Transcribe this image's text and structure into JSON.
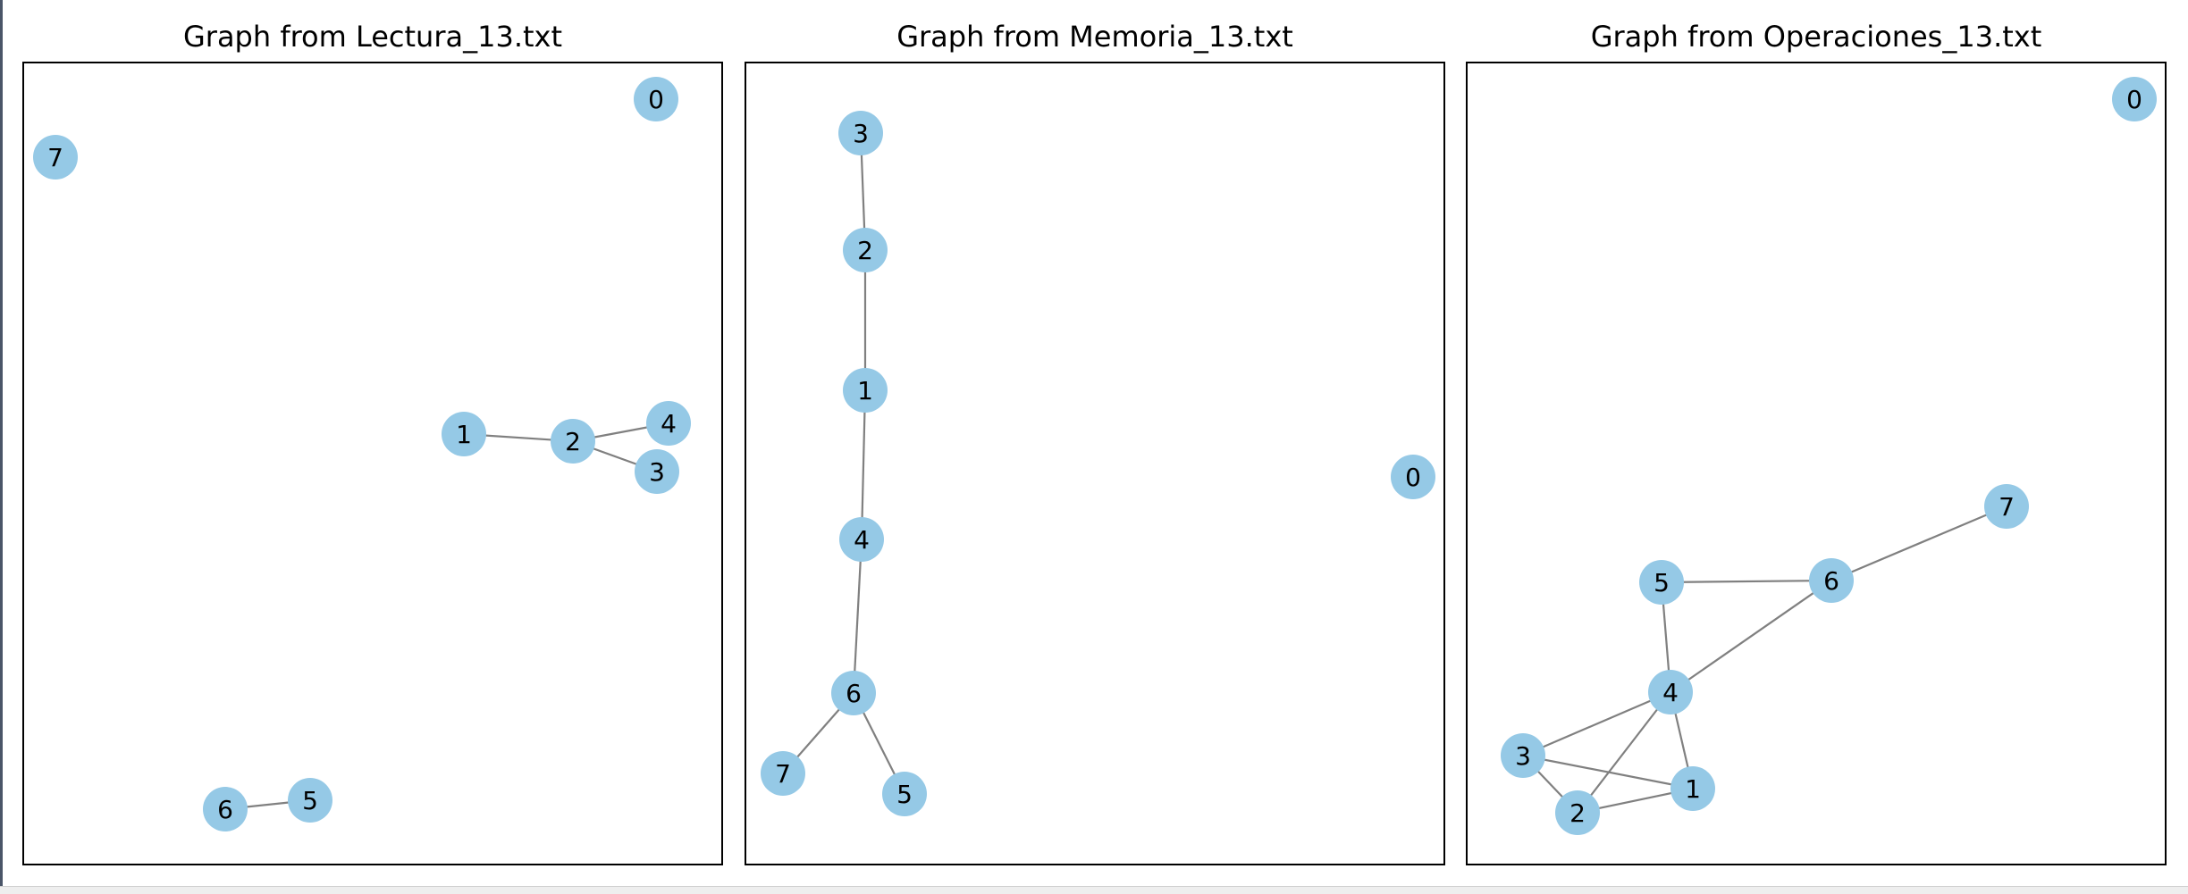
{
  "colors": {
    "node_fill": "#95c9e6",
    "edge": "#808080",
    "frame": "#000000",
    "background": "#ffffff"
  },
  "panels": [
    {
      "title": "Graph from Lectura_13.txt",
      "nodes": [
        "0",
        "1",
        "2",
        "3",
        "4",
        "5",
        "6",
        "7"
      ],
      "edges": [
        [
          "1",
          "2"
        ],
        [
          "2",
          "4"
        ],
        [
          "2",
          "3"
        ],
        [
          "6",
          "5"
        ]
      ]
    },
    {
      "title": "Graph from Memoria_13.txt",
      "nodes": [
        "0",
        "1",
        "2",
        "3",
        "4",
        "5",
        "6",
        "7"
      ],
      "edges": [
        [
          "3",
          "2"
        ],
        [
          "2",
          "1"
        ],
        [
          "1",
          "4"
        ],
        [
          "4",
          "6"
        ],
        [
          "6",
          "7"
        ],
        [
          "6",
          "5"
        ]
      ]
    },
    {
      "title": "Graph from Operaciones_13.txt",
      "nodes": [
        "0",
        "1",
        "2",
        "3",
        "4",
        "5",
        "6",
        "7"
      ],
      "edges": [
        [
          "7",
          "6"
        ],
        [
          "5",
          "6"
        ],
        [
          "5",
          "4"
        ],
        [
          "6",
          "4"
        ],
        [
          "4",
          "3"
        ],
        [
          "4",
          "2"
        ],
        [
          "4",
          "1"
        ],
        [
          "3",
          "2"
        ],
        [
          "3",
          "1"
        ],
        [
          "2",
          "1"
        ]
      ]
    }
  ]
}
